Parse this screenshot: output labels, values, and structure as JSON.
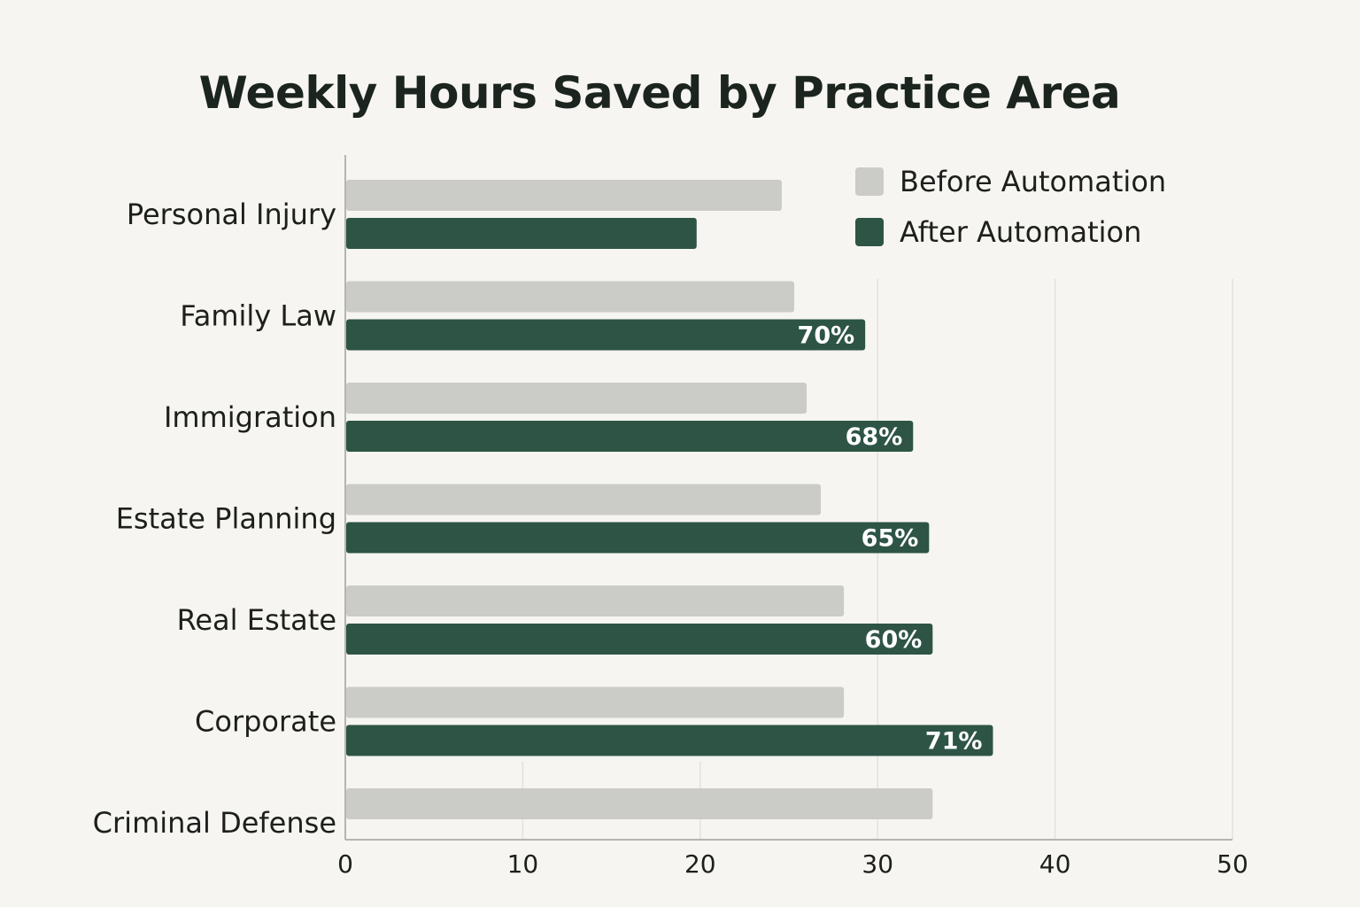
{
  "chart_data": {
    "type": "bar",
    "orientation": "horizontal",
    "title": "Weekly Hours Saved by Practice Area",
    "xlabel": "",
    "ylabel": "",
    "xlim": [
      0,
      50
    ],
    "xticks": [
      "0",
      "10",
      "20",
      "30",
      "40",
      "50"
    ],
    "grid": true,
    "legend_position": "top-right",
    "categories": [
      "Personal Injury",
      "Family Law",
      "Immigration",
      "Estate Planning",
      "Real Estate",
      "Corporate",
      "Criminal Defense"
    ],
    "series": [
      {
        "name": "Before Automation",
        "color": "#cbccc8",
        "values": [
          24.6,
          25.3,
          26.0,
          26.8,
          28.1,
          28.1,
          33.1
        ]
      },
      {
        "name": "After Automation",
        "color": "#2e5446",
        "values": [
          19.8,
          29.3,
          32.0,
          32.9,
          33.1,
          36.5,
          null
        ],
        "data_labels": [
          "",
          "70%",
          "68%",
          "65%",
          "60%",
          "71%",
          ""
        ]
      }
    ]
  }
}
